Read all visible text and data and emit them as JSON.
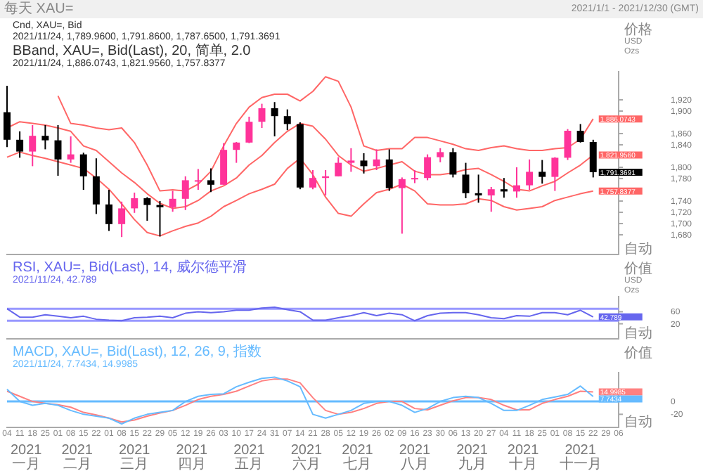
{
  "chart_data": [
    {
      "type": "candlestick",
      "title": "每天 XAU=",
      "subtitle": "2021/1/1 - 2021/12/30 (GMT)",
      "ylabel": "价格\nUSD\nOzs",
      "tick_labels": "y",
      "categories": [
        "04",
        "11",
        "18",
        "25",
        "01",
        "08",
        "15",
        "22",
        "01",
        "08",
        "15",
        "22",
        "29",
        "05",
        "12",
        "19",
        "26",
        "03",
        "10",
        "17",
        "24",
        "31",
        "07",
        "14",
        "21",
        "28",
        "05",
        "12",
        "19",
        "26",
        "02",
        "09",
        "16",
        "23",
        "30",
        "06",
        "13",
        "20",
        "27",
        "04",
        "11",
        "18",
        "25",
        "01",
        "08",
        "15",
        "22",
        "29",
        "06"
      ],
      "ohlc": [
        [
          1898,
          1945,
          1836,
          1849
        ],
        [
          1849,
          1864,
          1817,
          1828
        ],
        [
          1828,
          1875,
          1802,
          1856
        ],
        [
          1856,
          1875,
          1832,
          1848
        ],
        [
          1848,
          1875,
          1785,
          1814
        ],
        [
          1814,
          1855,
          1808,
          1823
        ],
        [
          1823,
          1826,
          1760,
          1784
        ],
        [
          1784,
          1816,
          1717,
          1734
        ],
        [
          1734,
          1760,
          1687,
          1699
        ],
        [
          1699,
          1739,
          1676,
          1727
        ],
        [
          1727,
          1755,
          1719,
          1745
        ],
        [
          1745,
          1747,
          1705,
          1733
        ],
        [
          1733,
          1740,
          1677,
          1729
        ],
        [
          1729,
          1758,
          1721,
          1744
        ],
        [
          1744,
          1784,
          1724,
          1777
        ],
        [
          1777,
          1797,
          1760,
          1777
        ],
        [
          1777,
          1798,
          1756,
          1769
        ],
        [
          1769,
          1843,
          1769,
          1831
        ],
        [
          1831,
          1845,
          1808,
          1844
        ],
        [
          1844,
          1890,
          1843,
          1881
        ],
        [
          1881,
          1913,
          1870,
          1905
        ],
        [
          1905,
          1916,
          1855,
          1891
        ],
        [
          1891,
          1903,
          1866,
          1877
        ],
        [
          1877,
          1880,
          1761,
          1764
        ],
        [
          1764,
          1795,
          1761,
          1781
        ],
        [
          1781,
          1795,
          1750,
          1784
        ],
        [
          1784,
          1818,
          1784,
          1808
        ],
        [
          1808,
          1834,
          1792,
          1812
        ],
        [
          1812,
          1825,
          1789,
          1802
        ],
        [
          1802,
          1832,
          1795,
          1814
        ],
        [
          1814,
          1832,
          1758,
          1763
        ],
        [
          1763,
          1782,
          1682,
          1779
        ],
        [
          1779,
          1795,
          1772,
          1781
        ],
        [
          1781,
          1823,
          1777,
          1818
        ],
        [
          1818,
          1834,
          1809,
          1827
        ],
        [
          1827,
          1834,
          1782,
          1787
        ],
        [
          1787,
          1808,
          1745,
          1754
        ],
        [
          1754,
          1787,
          1737,
          1750
        ],
        [
          1750,
          1765,
          1721,
          1761
        ],
        [
          1761,
          1781,
          1746,
          1757
        ],
        [
          1757,
          1800,
          1746,
          1768
        ],
        [
          1768,
          1814,
          1760,
          1792
        ],
        [
          1792,
          1813,
          1771,
          1783
        ],
        [
          1783,
          1818,
          1758,
          1817
        ],
        [
          1817,
          1868,
          1813,
          1865
        ],
        [
          1865,
          1877,
          1844,
          1845
        ],
        [
          1845,
          1849,
          1782,
          1791.3691
        ],
        null,
        null
      ],
      "colors": [
        "#000000",
        "#000000",
        "#ff3399",
        "#000000",
        "#000000",
        "#ff3399",
        "#000000",
        "#000000",
        "#000000",
        "#ff3399",
        "#ff3399",
        "#000000",
        "#000000",
        "#ff3399",
        "#ff3399",
        "#ff3399",
        "#000000",
        "#ff3399",
        "#ff3399",
        "#ff3399",
        "#ff3399",
        "#000000",
        "#000000",
        "#000000",
        "#ff3399",
        "#ff3399",
        "#ff3399",
        "#ff3399",
        "#000000",
        "#ff3399",
        "#000000",
        "#ff3399",
        "#ff3399",
        "#ff3399",
        "#ff3399",
        "#000000",
        "#000000",
        "#000000",
        "#ff3399",
        "#000000",
        "#ff3399",
        "#ff3399",
        "#000000",
        "#ff3399",
        "#ff3399",
        "#000000",
        "#000000",
        null,
        null
      ],
      "value_labels": [
        null,
        null,
        null,
        null,
        null,
        null,
        null,
        null,
        null,
        null,
        null,
        null,
        null,
        null,
        null,
        null,
        null,
        null,
        null,
        null,
        null,
        null,
        null,
        null,
        null,
        null,
        null,
        null,
        null,
        null,
        null,
        null,
        null,
        null,
        null,
        null,
        null,
        null,
        null,
        null,
        null,
        null,
        null,
        null,
        null,
        null,
        "1,791.3691",
        null,
        null
      ],
      "series": [
        {
          "type": "line",
          "color": "#ff6666",
          "values": [
            null,
            null,
            null,
            null,
            1927,
            1878,
            1875,
            1870,
            1867,
            1870,
            1844,
            1804,
            1758,
            1760,
            1758,
            1770,
            1793,
            1838,
            1878,
            1907,
            1924,
            1930,
            1930,
            1918,
            1935,
            1961,
            1953,
            1907,
            1838,
            1830,
            1833,
            1833,
            1853,
            1853,
            1847,
            1841,
            1833,
            1830,
            1835,
            1838,
            1833,
            1830,
            1830,
            1833,
            1835,
            1850,
            1886.0743,
            null,
            null
          ],
          "value_labels": [
            null,
            null,
            null,
            null,
            null,
            null,
            null,
            null,
            null,
            null,
            null,
            null,
            null,
            null,
            null,
            null,
            null,
            null,
            null,
            null,
            null,
            null,
            null,
            null,
            null,
            null,
            null,
            null,
            null,
            null,
            null,
            null,
            null,
            null,
            null,
            null,
            null,
            null,
            null,
            null,
            null,
            null,
            null,
            null,
            null,
            null,
            "1,886.0743",
            null,
            null
          ]
        },
        {
          "type": "line",
          "color": "#ff6666",
          "values": [
            1870,
            1881,
            1878,
            1875,
            1870,
            1864,
            1838,
            1830,
            1810,
            1790,
            1773,
            1753,
            1736,
            1727,
            1730,
            1741,
            1758,
            1767,
            1781,
            1804,
            1821,
            1844,
            1864,
            1878,
            1873,
            1850,
            1821,
            1804,
            1793,
            1798,
            1804,
            1810,
            1793,
            1787,
            1787,
            1790,
            1796,
            1798,
            1787,
            1775,
            1761,
            1758,
            1767,
            1775,
            1790,
            1804,
            1821.956,
            null,
            null
          ],
          "value_labels": [
            null,
            null,
            null,
            null,
            null,
            null,
            null,
            null,
            null,
            null,
            null,
            null,
            null,
            null,
            null,
            null,
            null,
            null,
            null,
            null,
            null,
            null,
            null,
            null,
            null,
            null,
            null,
            null,
            null,
            null,
            null,
            null,
            null,
            null,
            null,
            null,
            null,
            null,
            null,
            null,
            null,
            null,
            null,
            null,
            null,
            null,
            "1,821.9560",
            null,
            null
          ]
        },
        {
          "type": "line",
          "color": "#ff6666",
          "values": [
            1818,
            1827,
            1821,
            1816,
            1810,
            1804,
            1798,
            1781,
            1761,
            1735,
            1707,
            1684,
            1678,
            1687,
            1695,
            1701,
            1713,
            1730,
            1741,
            1753,
            1761,
            1770,
            1798,
            1816,
            1787,
            1747,
            1718,
            1713,
            1735,
            1755,
            1761,
            1770,
            1758,
            1735,
            1733,
            1733,
            1735,
            1744,
            1741,
            1730,
            1724,
            1727,
            1730,
            1741,
            1747,
            1753,
            1757.8377,
            null,
            null
          ],
          "value_labels": [
            null,
            null,
            null,
            null,
            null,
            null,
            null,
            null,
            null,
            null,
            null,
            null,
            null,
            null,
            null,
            null,
            null,
            null,
            null,
            null,
            null,
            null,
            null,
            null,
            null,
            null,
            null,
            null,
            null,
            null,
            null,
            null,
            null,
            null,
            null,
            null,
            null,
            null,
            null,
            null,
            null,
            null,
            null,
            null,
            null,
            null,
            "1,757.8377",
            null,
            null
          ]
        }
      ],
      "ylim": [
        1645,
        1970
      ],
      "yticks": [
        {
          "value": 1680,
          "label": "1,680"
        },
        {
          "value": 1700,
          "label": "1,700"
        },
        {
          "value": 1720,
          "label": "1,720"
        },
        {
          "value": 1740,
          "label": "1,740"
        },
        {
          "value": 1780,
          "label": "1,780"
        },
        {
          "value": 1800,
          "label": "1,800"
        },
        {
          "value": 1840,
          "label": "1,840"
        },
        {
          "value": 1860,
          "label": "1,860"
        },
        {
          "value": 1900,
          "label": "1,900"
        },
        {
          "value": 1920,
          "label": "1,920"
        }
      ],
      "annotations": [
        "Cnd, XAU=, Bid",
        "2021/11/24, 1,789.9600, 1,791.8600, 1,787.6500, 1,791.3691",
        "BBand, XAU=, Bid(Last), 20, 简单, 2.0",
        "2021/11/24, 1,886.0743, 1,821.9560, 1,757.8377",
        "自动"
      ]
    },
    {
      "type": "line",
      "title": "RSI, XAU=, Bid(Last), 14, 威尔德平滑",
      "subtitle": "2021/11/24, 42.789",
      "ylabel": "价值\nUSD\nOzs",
      "tick_labels": "y",
      "categories": [
        "04",
        "11",
        "18",
        "25",
        "01",
        "08",
        "15",
        "22",
        "01",
        "08",
        "15",
        "22",
        "29",
        "05",
        "12",
        "19",
        "26",
        "03",
        "10",
        "17",
        "24",
        "31",
        "07",
        "14",
        "21",
        "28",
        "05",
        "12",
        "19",
        "26",
        "02",
        "09",
        "16",
        "23",
        "30",
        "06",
        "13",
        "20",
        "27",
        "04",
        "11",
        "18",
        "25",
        "01",
        "08",
        "15",
        "22",
        "29",
        "06"
      ],
      "series": [
        {
          "color": "#6666ee",
          "values": [
            70,
            42,
            42,
            50,
            45,
            40,
            45,
            35,
            32,
            30,
            40,
            42,
            45,
            40,
            55,
            60,
            57,
            60,
            65,
            65,
            72,
            75,
            67,
            60,
            32,
            32,
            40,
            47,
            57,
            47,
            55,
            50,
            30,
            47,
            55,
            57,
            57,
            50,
            40,
            37,
            47,
            45,
            57,
            57,
            50,
            65,
            42.789,
            null,
            null
          ],
          "value_labels": [
            null,
            null,
            null,
            null,
            null,
            null,
            null,
            null,
            null,
            null,
            null,
            null,
            null,
            null,
            null,
            null,
            null,
            null,
            null,
            null,
            null,
            null,
            null,
            null,
            null,
            null,
            null,
            null,
            null,
            null,
            null,
            null,
            null,
            null,
            null,
            null,
            null,
            null,
            null,
            null,
            null,
            null,
            null,
            null,
            null,
            null,
            "42.789",
            null,
            null
          ]
        }
      ],
      "ylim": [
        -30,
        110
      ],
      "yticks": [
        20,
        60
      ],
      "ref_lines": [
        {
          "axis": "y",
          "value": 70,
          "color": "#9999ff"
        },
        {
          "axis": "y",
          "value": 30,
          "color": "#9999ff"
        }
      ],
      "annotations": [
        "自动"
      ]
    },
    {
      "type": "line",
      "title": "MACD, XAU=, Bid(Last), 12, 26, 9, 指数",
      "subtitle": "2021/11/24, 7.7434, 14.9985",
      "ylabel": "价值",
      "categories": [
        "04",
        "11",
        "18",
        "25",
        "01",
        "08",
        "15",
        "22",
        "01",
        "08",
        "15",
        "22",
        "29",
        "05",
        "12",
        "19",
        "26",
        "03",
        "10",
        "17",
        "24",
        "31",
        "07",
        "14",
        "21",
        "28",
        "05",
        "12",
        "19",
        "26",
        "02",
        "09",
        "16",
        "23",
        "30",
        "06",
        "13",
        "20",
        "27",
        "04",
        "11",
        "18",
        "25",
        "01",
        "08",
        "15",
        "22",
        "29",
        "06"
      ],
      "series": [
        {
          "color": "#66bbff",
          "values": [
            19,
            0,
            -6,
            -3,
            -6,
            -14,
            -20,
            -23,
            -26,
            -35,
            -26,
            -20,
            -17,
            -14,
            0,
            8,
            11,
            12,
            23,
            30,
            36,
            38,
            32,
            23,
            -20,
            -26,
            -20,
            -14,
            -3,
            0,
            0,
            -6,
            -17,
            -11,
            0,
            6,
            8,
            6,
            -3,
            -14,
            -14,
            -6,
            3,
            7,
            11,
            24,
            7.7434,
            null,
            null
          ],
          "value_labels": [
            null,
            null,
            null,
            null,
            null,
            null,
            null,
            null,
            null,
            null,
            null,
            null,
            null,
            null,
            null,
            null,
            null,
            null,
            null,
            null,
            null,
            null,
            null,
            null,
            null,
            null,
            null,
            null,
            null,
            null,
            null,
            null,
            null,
            null,
            null,
            null,
            null,
            null,
            null,
            null,
            null,
            null,
            null,
            null,
            null,
            null,
            "7.7434",
            null,
            null
          ]
        },
        {
          "color": "#ff8080",
          "values": [
            16,
            8,
            0,
            -3,
            -5,
            -9,
            -17,
            -21,
            -26,
            -32,
            -29,
            -23,
            -18,
            -14,
            -6,
            3,
            8,
            11,
            16,
            24,
            32,
            35,
            35,
            29,
            6,
            -14,
            -20,
            -17,
            -11,
            -3,
            0,
            0,
            -11,
            -13,
            -6,
            1,
            6,
            6,
            3,
            -6,
            -13,
            -13,
            -3,
            3,
            8,
            16,
            14.9985,
            null,
            null
          ],
          "value_labels": [
            null,
            null,
            null,
            null,
            null,
            null,
            null,
            null,
            null,
            null,
            null,
            null,
            null,
            null,
            null,
            null,
            null,
            null,
            null,
            null,
            null,
            null,
            null,
            null,
            null,
            null,
            null,
            null,
            null,
            null,
            null,
            null,
            null,
            null,
            null,
            null,
            null,
            null,
            null,
            null,
            null,
            null,
            null,
            null,
            null,
            null,
            "14.9985",
            null,
            null
          ]
        }
      ],
      "ylim": [
        -40,
        45
      ],
      "yticks": [
        -20,
        0
      ],
      "ref_lines": [
        {
          "axis": "y",
          "value": 0,
          "color": "#66bbff"
        }
      ],
      "annotations": [
        "2021 一月",
        "2021 二月",
        "2021 三月",
        "2021 四月",
        "2021 五月",
        "2021 六月",
        "2021 七月",
        "2021 八月",
        "2021 九月",
        "2021 十月",
        "2021 十一月",
        "自动"
      ]
    }
  ]
}
